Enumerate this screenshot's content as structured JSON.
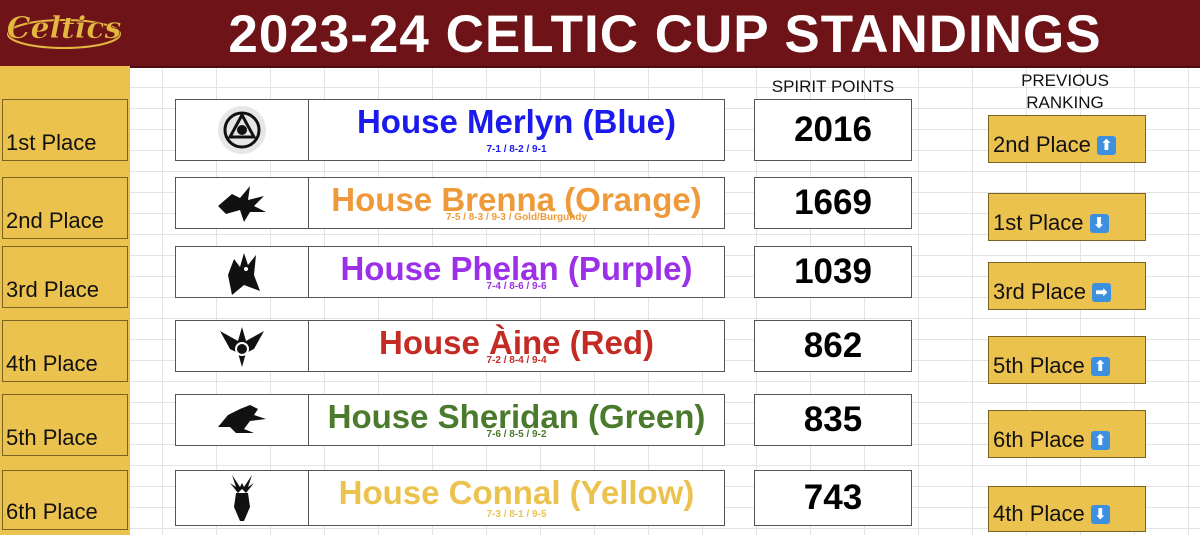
{
  "header": {
    "logo_text": "Celtics",
    "title": "2023-24 CELTIC CUP STANDINGS"
  },
  "columns": {
    "spirit_points": "SPIRIT POINTS",
    "previous_ranking": "PREVIOUS RANKING"
  },
  "colors": {
    "header_bg": "#6e1418",
    "gold": "#ecc24f",
    "arrow": "#3d8fe0"
  },
  "rows": [
    {
      "place": "1st Place",
      "house": "House Merlyn (Blue)",
      "sub": "7-1 / 8-2 / 9-1",
      "color": "#1a1aee",
      "points": "2016",
      "previous": "2nd Place",
      "arrow": "⬆",
      "arrow_icon": "up-arrow-icon",
      "crest": "triskele-icon"
    },
    {
      "place": "2nd Place",
      "house": "House Brenna (Orange)",
      "sub": "7-5 / 8-3 / 9-3 / Gold/Burgundy",
      "color": "#ef9a3a",
      "points": "1669",
      "previous": "1st Place",
      "arrow": "⬇",
      "arrow_icon": "down-arrow-icon",
      "crest": "raven-icon"
    },
    {
      "place": "3rd Place",
      "house": "House Phelan (Purple)",
      "sub": "7-4 / 8-6 / 9-6",
      "color": "#9b30e8",
      "points": "1039",
      "previous": "3rd Place",
      "arrow": "➡",
      "arrow_icon": "right-arrow-icon",
      "crest": "wolf-icon"
    },
    {
      "place": "4th Place",
      "house": "House Àine (Red)",
      "sub": "7-2 / 8-4 / 9-4",
      "color": "#c42b24",
      "points": "862",
      "previous": "5th Place",
      "arrow": "⬆",
      "arrow_icon": "up-arrow-icon",
      "crest": "dragon-knot-icon"
    },
    {
      "place": "5th Place",
      "house": "House Sheridan (Green)",
      "sub": "7-6 / 8-5 / 9-2",
      "color": "#4a7a2c",
      "points": "835",
      "previous": "6th Place",
      "arrow": "⬆",
      "arrow_icon": "up-arrow-icon",
      "crest": "horse-icon"
    },
    {
      "place": "6th Place",
      "house": "House Connal (Yellow)",
      "sub": "7-3 / 8-1 / 9-5",
      "color": "#ecc24f",
      "points": "743",
      "previous": "4th Place",
      "arrow": "⬇",
      "arrow_icon": "down-arrow-icon",
      "crest": "stag-icon"
    }
  ]
}
